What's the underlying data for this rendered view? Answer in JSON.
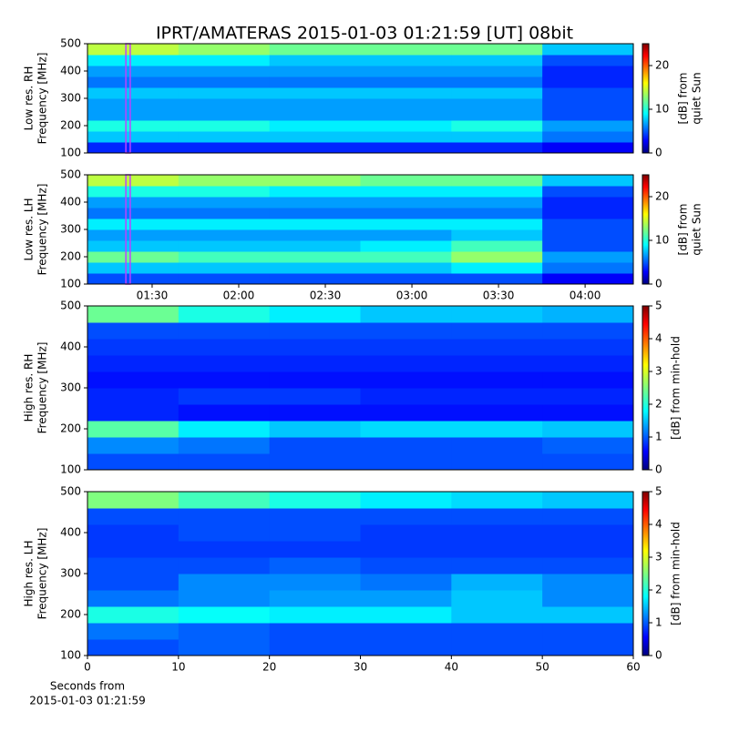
{
  "chart_data": [
    {
      "type": "heatmap",
      "title": "IPRT/AMATERAS 2015-01-03 01:21:59 [UT]   08bit",
      "ylabel": [
        "Low res. RH",
        "Frequency [MHz]"
      ],
      "colorbar_label": [
        "[dB] from",
        "quiet Sun"
      ],
      "xlim": [
        67.6,
        256.7
      ],
      "ylim": [
        100,
        500
      ],
      "yticks": [
        100,
        200,
        300,
        400,
        500
      ],
      "clim": [
        0,
        25
      ],
      "cticks": [
        0,
        10,
        20
      ],
      "highlight_x": [
        80.9,
        82.4
      ],
      "z": [
        [
          4,
          4,
          4,
          4,
          4,
          3
        ],
        [
          8,
          8,
          8,
          8,
          8,
          6
        ],
        [
          10,
          10,
          9,
          9,
          10,
          7
        ],
        [
          7,
          7,
          7,
          7,
          7,
          5
        ],
        [
          7,
          7,
          7,
          7,
          7,
          5
        ],
        [
          8,
          8,
          8,
          8,
          8,
          5
        ],
        [
          6,
          6,
          6,
          6,
          6,
          4
        ],
        [
          7,
          7,
          7,
          7,
          7,
          4
        ],
        [
          9,
          9,
          8,
          8,
          8,
          5
        ],
        [
          14,
          13,
          12,
          12,
          12,
          8
        ]
      ]
    },
    {
      "type": "heatmap",
      "ylabel": [
        "Low res. LH",
        "Frequency [MHz]"
      ],
      "colorbar_label": [
        "[dB] from",
        "quiet Sun"
      ],
      "xlim": [
        67.6,
        256.7
      ],
      "ylim": [
        100,
        500
      ],
      "yticks": [
        100,
        200,
        300,
        400,
        500
      ],
      "xticks": [
        {
          "value": 90,
          "label": "01:30"
        },
        {
          "value": 120,
          "label": "02:00"
        },
        {
          "value": 150,
          "label": "02:30"
        },
        {
          "value": 180,
          "label": "03:00"
        },
        {
          "value": 210,
          "label": "03:30"
        },
        {
          "value": 240,
          "label": "04:00"
        }
      ],
      "clim": [
        0,
        25
      ],
      "cticks": [
        0,
        10,
        20
      ],
      "highlight_x": [
        80.9,
        82.4
      ],
      "z": [
        [
          5,
          5,
          5,
          5,
          5,
          3
        ],
        [
          8,
          8,
          8,
          8,
          9,
          6
        ],
        [
          12,
          11,
          11,
          11,
          13,
          7
        ],
        [
          8,
          8,
          8,
          9,
          11,
          5
        ],
        [
          7,
          7,
          7,
          7,
          8,
          5
        ],
        [
          9,
          9,
          9,
          9,
          9,
          5
        ],
        [
          6,
          6,
          6,
          6,
          6,
          4
        ],
        [
          7,
          7,
          7,
          7,
          7,
          4
        ],
        [
          10,
          10,
          9,
          9,
          9,
          5
        ],
        [
          14,
          13,
          13,
          12,
          12,
          8
        ]
      ]
    },
    {
      "type": "heatmap",
      "ylabel": [
        "High res. RH",
        "Frequency [MHz]"
      ],
      "colorbar_label": [
        "[dB] from min-hold"
      ],
      "xlim": [
        0,
        60
      ],
      "ylim": [
        100,
        500
      ],
      "yticks": [
        100,
        200,
        300,
        400,
        500
      ],
      "clim": [
        0,
        5
      ],
      "cticks": [
        0,
        1,
        2,
        3,
        4,
        5
      ],
      "z": [
        [
          1,
          1,
          1,
          1,
          1,
          1
        ],
        [
          1.3,
          1.2,
          1,
          1,
          1,
          1.1
        ],
        [
          2.3,
          1.8,
          1.6,
          1.7,
          1.7,
          1.6
        ],
        [
          0.8,
          0.7,
          0.7,
          0.7,
          0.7,
          0.7
        ],
        [
          0.8,
          0.9,
          0.9,
          0.8,
          0.8,
          0.8
        ],
        [
          0.7,
          0.7,
          0.7,
          0.7,
          0.7,
          0.7
        ],
        [
          0.8,
          0.8,
          0.8,
          0.8,
          0.8,
          0.8
        ],
        [
          0.9,
          0.9,
          0.9,
          0.9,
          0.9,
          0.9
        ],
        [
          1,
          1,
          1,
          1,
          1,
          1
        ],
        [
          2.4,
          2,
          1.8,
          1.6,
          1.6,
          1.5
        ]
      ]
    },
    {
      "type": "heatmap",
      "ylabel": [
        "High res. LH",
        "Frequency [MHz]"
      ],
      "colorbar_label": [
        "[dB] from min-hold"
      ],
      "xlabel": [
        "Seconds from",
        "2015-01-03 01:21:59"
      ],
      "xlim": [
        0,
        60
      ],
      "ylim": [
        100,
        500
      ],
      "yticks": [
        100,
        200,
        300,
        400,
        500
      ],
      "xticks": [
        0,
        10,
        20,
        30,
        40,
        50,
        60
      ],
      "clim": [
        0,
        5
      ],
      "cticks": [
        0,
        1,
        2,
        3,
        4,
        5
      ],
      "z": [
        [
          1,
          1.1,
          1,
          1,
          1,
          1
        ],
        [
          1.2,
          1.1,
          1,
          1,
          1,
          1
        ],
        [
          2,
          1.9,
          1.8,
          1.8,
          1.6,
          1.6
        ],
        [
          1.2,
          1.3,
          1.4,
          1.4,
          1.6,
          1.3
        ],
        [
          1,
          1.3,
          1.3,
          1.2,
          1.5,
          1.3
        ],
        [
          1,
          1,
          1.1,
          1,
          1,
          1
        ],
        [
          0.9,
          0.9,
          0.9,
          0.9,
          0.9,
          0.9
        ],
        [
          0.9,
          1,
          1,
          0.9,
          0.9,
          0.9
        ],
        [
          1,
          1,
          1,
          1,
          1,
          1
        ],
        [
          2.5,
          2.2,
          2,
          1.8,
          1.7,
          1.6
        ]
      ]
    }
  ]
}
